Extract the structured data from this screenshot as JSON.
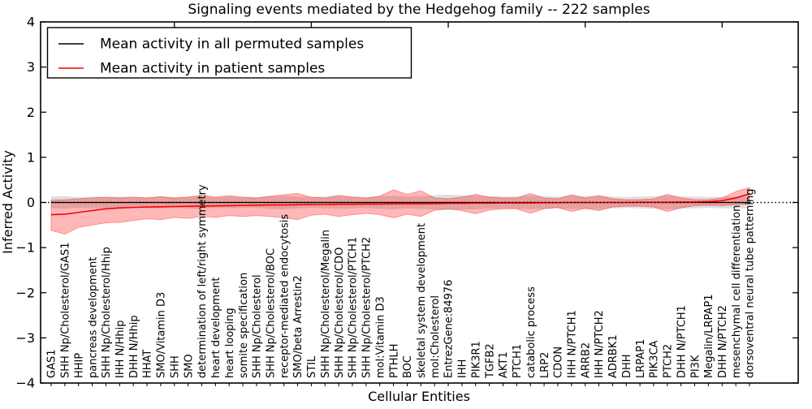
{
  "chart_data": {
    "type": "line",
    "title": "Signaling events mediated by the Hedgehog family -- 222 samples",
    "xlabel": "Cellular Entities",
    "ylabel": "Inferred Activity",
    "ylim": [
      -4,
      4
    ],
    "yticks": [
      -4,
      -3,
      -2,
      -1,
      0,
      1,
      2,
      3,
      4
    ],
    "grid": false,
    "zero_line": {
      "style": "dotted",
      "color": "#000000"
    },
    "xtick_major_every": 10,
    "legend": {
      "position": "upper left",
      "entries": [
        {
          "label": "Mean activity in all permuted samples",
          "color": "#000000"
        },
        {
          "label": "Mean activity in patient samples",
          "color": "#ff0000"
        }
      ]
    },
    "categories": [
      "GAS1",
      "SHH Np/Cholesterol/GAS1",
      "HHIP",
      "pancreas development",
      "SHH Np/Cholesterol/Hhip",
      "IHH N/Hhip",
      "DHH N/Hhip",
      "HHAT",
      "SMO/Vitamin D3",
      "SHH",
      "SMO",
      "determination of left/right symmetry",
      "heart development",
      "heart looping",
      "somite specification",
      "SHH Np/Cholesterol",
      "SHH Np/Cholesterol/BOC",
      "receptor-mediated endocytosis",
      "SMO/beta Arrestin2",
      "STIL",
      "SHH Np/Cholesterol/Megalin",
      "SHH Np/Cholesterol/CDO",
      "SHH Np/Cholesterol/PTCH1",
      "SHH Np/Cholesterol/PTCH2",
      "mol:Vitamin D3",
      "PTHLH",
      "BOC",
      "skeletal system development",
      "mol:Cholesterol",
      "EntrezGene:84976",
      "IHH",
      "PIK3R1",
      "TGFB2",
      "AKT1",
      "PTCH1",
      "catabolic process",
      "LRP2",
      "CDON",
      "IHH N/PTCH1",
      "ARRB2",
      "IHH N/PTCH2",
      "ADRBK1",
      "DHH",
      "LRPAP1",
      "PIK3CA",
      "PTCH2",
      "DHH N/PTCH1",
      "PI3K",
      "Megalin/LRPAP1",
      "DHH N/PTCH2",
      "mesenchymal cell differentiation",
      "dorsoventral neural tube patterning"
    ],
    "series": [
      {
        "name": "Mean activity in all permuted samples",
        "color": "#000000",
        "band_color": "#000000",
        "band_alpha": 0.13,
        "values": [
          0,
          0,
          0,
          0,
          0,
          0,
          0,
          0,
          0,
          0,
          0,
          0,
          0,
          0,
          0,
          0,
          0,
          0,
          0,
          0,
          0,
          0,
          0,
          0,
          0,
          0,
          0,
          0,
          0,
          0,
          0,
          0,
          0,
          0,
          0,
          0,
          0,
          0,
          0,
          0,
          0,
          0,
          0,
          0,
          0,
          0,
          0,
          0,
          0,
          0,
          0,
          0
        ],
        "band_half_width": [
          0.13,
          0.14,
          0.12,
          0.13,
          0.12,
          0.13,
          0.12,
          0.12,
          0.13,
          0.12,
          0.13,
          0.14,
          0.12,
          0.13,
          0.12,
          0.12,
          0.14,
          0.15,
          0.13,
          0.12,
          0.13,
          0.14,
          0.13,
          0.12,
          0.14,
          0.15,
          0.13,
          0.14,
          0.16,
          0.17,
          0.16,
          0.15,
          0.14,
          0.13,
          0.14,
          0.15,
          0.14,
          0.13,
          0.15,
          0.14,
          0.15,
          0.13,
          0.12,
          0.13,
          0.14,
          0.15,
          0.14,
          0.13,
          0.12,
          0.13,
          0.13,
          0.12
        ]
      },
      {
        "name": "Mean activity in patient samples",
        "color": "#ff0000",
        "band_color": "#ff0000",
        "band_alpha": 0.28,
        "values": [
          -0.27,
          -0.26,
          -0.22,
          -0.18,
          -0.14,
          -0.12,
          -0.11,
          -0.1,
          -0.095,
          -0.09,
          -0.085,
          -0.08,
          -0.075,
          -0.07,
          -0.065,
          -0.06,
          -0.055,
          -0.055,
          -0.05,
          -0.045,
          -0.045,
          -0.04,
          -0.04,
          -0.035,
          -0.035,
          -0.03,
          -0.03,
          -0.03,
          -0.025,
          -0.02,
          -0.02,
          -0.015,
          -0.015,
          -0.01,
          -0.01,
          -0.01,
          -0.005,
          -0.005,
          0,
          0,
          0,
          0,
          0,
          0.005,
          0.005,
          0.005,
          0.01,
          0.01,
          0.02,
          0.04,
          0.1,
          0.19
        ],
        "band_upper": [
          0.05,
          0.06,
          0.08,
          0.1,
          0.12,
          0.1,
          0.12,
          0.1,
          0.13,
          0.1,
          0.12,
          0.16,
          0.12,
          0.15,
          0.12,
          0.1,
          0.14,
          0.17,
          0.2,
          0.12,
          0.1,
          0.16,
          0.12,
          0.1,
          0.14,
          0.28,
          0.18,
          0.26,
          0.1,
          0.08,
          0.12,
          0.18,
          0.12,
          0.1,
          0.1,
          0.2,
          0.1,
          0.08,
          0.17,
          0.1,
          0.15,
          0.08,
          0.06,
          0.06,
          0.08,
          0.18,
          0.1,
          0.06,
          0.06,
          0.1,
          0.24,
          0.33
        ],
        "band_lower": [
          -0.62,
          -0.7,
          -0.55,
          -0.5,
          -0.45,
          -0.44,
          -0.4,
          -0.36,
          -0.38,
          -0.33,
          -0.35,
          -0.31,
          -0.33,
          -0.29,
          -0.31,
          -0.29,
          -0.31,
          -0.34,
          -0.38,
          -0.28,
          -0.26,
          -0.31,
          -0.27,
          -0.24,
          -0.27,
          -0.34,
          -0.26,
          -0.31,
          -0.17,
          -0.14,
          -0.18,
          -0.25,
          -0.17,
          -0.14,
          -0.14,
          -0.24,
          -0.14,
          -0.11,
          -0.2,
          -0.13,
          -0.18,
          -0.1,
          -0.08,
          -0.08,
          -0.1,
          -0.2,
          -0.12,
          -0.07,
          -0.06,
          -0.07,
          -0.05,
          -0.03
        ]
      }
    ]
  }
}
